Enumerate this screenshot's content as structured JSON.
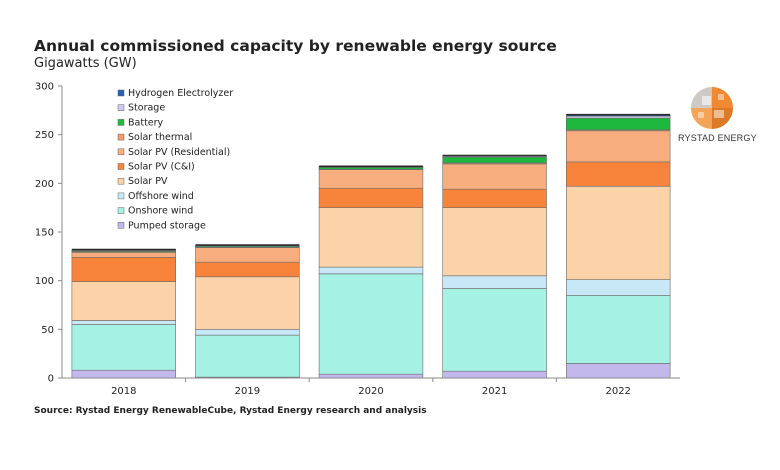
{
  "header": {
    "title": "Annual commissioned capacity by renewable energy source",
    "subtitle": "Gigawatts (GW)"
  },
  "footer": {
    "source": "Source: Rystad Energy RenewableCube, Rystad Energy research and analysis"
  },
  "brand": {
    "name": "RYSTAD ENERGY",
    "logo_icon": "rystad-globe-logo"
  },
  "chart_data": {
    "type": "bar",
    "stacked": true,
    "title": "Annual commissioned capacity by renewable energy source",
    "subtitle": "Gigawatts (GW)",
    "categories": [
      "2018",
      "2019",
      "2020",
      "2021",
      "2022"
    ],
    "ylim": [
      0,
      300
    ],
    "yticks": [
      0,
      50,
      100,
      150,
      200,
      250,
      300
    ],
    "grid": false,
    "legend_position": "top-left",
    "series": [
      {
        "name": "Pumped storage",
        "color": "#c3b8ec",
        "values": [
          8,
          1,
          4,
          7,
          15
        ]
      },
      {
        "name": "Onshore wind",
        "color": "#a5f1e3",
        "values": [
          47,
          43,
          103,
          85,
          70
        ]
      },
      {
        "name": "Offshore wind",
        "color": "#c8e8f7",
        "values": [
          4,
          6,
          7,
          13,
          16
        ]
      },
      {
        "name": "Solar PV",
        "color": "#fcd2a8",
        "values": [
          40,
          54,
          61,
          70,
          96
        ]
      },
      {
        "name": "Solar PV (C&I)",
        "color": "#f8843c",
        "values": [
          25,
          15,
          20,
          19,
          25
        ]
      },
      {
        "name": "Solar PV (Residential)",
        "color": "#f7ad7d",
        "values": [
          5,
          15,
          19,
          26,
          32
        ]
      },
      {
        "name": "Solar thermal",
        "color": "#f59b6b",
        "values": [
          1,
          0.5,
          0.5,
          1,
          1
        ]
      },
      {
        "name": "Battery",
        "color": "#1db83e",
        "values": [
          1,
          1,
          2,
          6,
          12
        ]
      },
      {
        "name": "Storage",
        "color": "#cfc8f0",
        "values": [
          0.5,
          0.5,
          0.5,
          1,
          2
        ]
      },
      {
        "name": "Hydrogen Electrolyzer",
        "color": "#2460b0",
        "values": [
          0.5,
          0.5,
          0.5,
          0.5,
          1.5
        ]
      }
    ],
    "legend_order": [
      "Hydrogen Electrolyzer",
      "Storage",
      "Battery",
      "Solar thermal",
      "Solar PV (Residential)",
      "Solar PV (C&I)",
      "Solar PV",
      "Offshore wind",
      "Onshore wind",
      "Pumped storage"
    ]
  }
}
